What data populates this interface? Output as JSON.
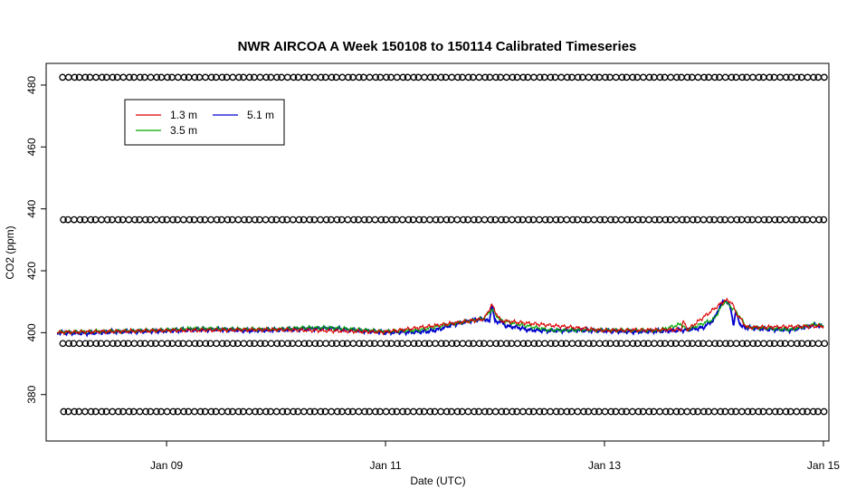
{
  "chart_data": {
    "type": "line",
    "title": "NWR AIRCOA A  Week 150108 to 150114  Calibrated Timeseries",
    "xlabel": "Date (UTC)",
    "ylabel": "CO2 (ppm)",
    "x_unit": "days (January 2015, UTC)",
    "xlim": [
      7.9,
      15.05
    ],
    "ylim": [
      365,
      487
    ],
    "x_ticks": [
      {
        "value": 9,
        "label": "Jan 09"
      },
      {
        "value": 11,
        "label": "Jan 11"
      },
      {
        "value": 13,
        "label": "Jan 13"
      },
      {
        "value": 15,
        "label": "Jan 15"
      }
    ],
    "y_ticks": [
      {
        "value": 380,
        "label": "380"
      },
      {
        "value": 400,
        "label": "400"
      },
      {
        "value": 420,
        "label": "420"
      },
      {
        "value": 440,
        "label": "440"
      },
      {
        "value": 460,
        "label": "460"
      },
      {
        "value": 480,
        "label": "480"
      }
    ],
    "grid": false,
    "legend": {
      "placement": "top-left",
      "entries": [
        {
          "label": "1.3 m",
          "color": "#dd0000"
        },
        {
          "label": "3.5 m",
          "color": "#00aa00"
        },
        {
          "label": "5.1 m",
          "color": "#0000cc"
        }
      ]
    },
    "series": [
      {
        "name": "5.1 m",
        "color": "#0000cc",
        "points": [
          [
            8.0,
            400.0
          ],
          [
            8.25,
            399.8
          ],
          [
            8.5,
            400.3
          ],
          [
            8.75,
            400.4
          ],
          [
            9.0,
            400.6
          ],
          [
            9.25,
            401.0
          ],
          [
            9.5,
            401.0
          ],
          [
            9.75,
            400.7
          ],
          [
            10.0,
            400.9
          ],
          [
            10.25,
            401.2
          ],
          [
            10.5,
            401.4
          ],
          [
            10.75,
            400.7
          ],
          [
            11.0,
            400.1
          ],
          [
            11.25,
            400.2
          ],
          [
            11.4,
            400.5
          ],
          [
            11.5,
            401.2
          ],
          [
            11.6,
            402.5
          ],
          [
            11.7,
            403.2
          ],
          [
            11.8,
            404.0
          ],
          [
            11.9,
            404.5
          ],
          [
            11.95,
            403.4
          ],
          [
            11.97,
            409.6
          ],
          [
            12.0,
            403.4
          ],
          [
            12.05,
            403.8
          ],
          [
            12.1,
            402.1
          ],
          [
            12.2,
            401.8
          ],
          [
            12.3,
            400.9
          ],
          [
            12.5,
            400.6
          ],
          [
            12.75,
            400.8
          ],
          [
            13.0,
            400.6
          ],
          [
            13.25,
            400.3
          ],
          [
            13.5,
            400.5
          ],
          [
            13.75,
            400.9
          ],
          [
            13.9,
            401.6
          ],
          [
            14.0,
            404.2
          ],
          [
            14.05,
            408.2
          ],
          [
            14.1,
            410.7
          ],
          [
            14.15,
            408.2
          ],
          [
            14.18,
            402.6
          ],
          [
            14.2,
            406.6
          ],
          [
            14.25,
            402.0
          ],
          [
            14.3,
            401.6
          ],
          [
            14.5,
            401.1
          ],
          [
            14.7,
            400.8
          ],
          [
            14.85,
            402.0
          ],
          [
            14.92,
            402.5
          ],
          [
            15.0,
            402.0
          ]
        ]
      },
      {
        "name": "3.5 m",
        "color": "#00aa00",
        "points": [
          [
            8.0,
            400.2
          ],
          [
            8.5,
            400.5
          ],
          [
            9.0,
            400.9
          ],
          [
            9.25,
            401.4
          ],
          [
            9.5,
            401.2
          ],
          [
            10.0,
            401.1
          ],
          [
            10.25,
            401.6
          ],
          [
            10.5,
            401.6
          ],
          [
            11.0,
            400.4
          ],
          [
            11.3,
            400.8
          ],
          [
            11.6,
            402.8
          ],
          [
            11.9,
            404.6
          ],
          [
            11.97,
            407.5
          ],
          [
            12.05,
            404.0
          ],
          [
            12.2,
            402.8
          ],
          [
            12.5,
            400.8
          ],
          [
            13.0,
            400.9
          ],
          [
            13.5,
            400.7
          ],
          [
            13.7,
            402.8
          ],
          [
            13.75,
            400.9
          ],
          [
            14.0,
            404.4
          ],
          [
            14.1,
            410.2
          ],
          [
            14.2,
            406.9
          ],
          [
            14.3,
            401.8
          ],
          [
            14.7,
            401.0
          ],
          [
            14.92,
            402.7
          ],
          [
            15.0,
            402.2
          ]
        ]
      },
      {
        "name": "1.3 m",
        "color": "#dd0000",
        "points": [
          [
            8.0,
            400.1
          ],
          [
            9.0,
            400.7
          ],
          [
            10.0,
            401.0
          ],
          [
            11.0,
            400.2
          ],
          [
            11.9,
            404.4
          ],
          [
            11.97,
            409.0
          ],
          [
            12.05,
            403.9
          ],
          [
            13.0,
            400.7
          ],
          [
            13.7,
            401.0
          ],
          [
            13.72,
            403.6
          ],
          [
            13.76,
            401.0
          ],
          [
            14.1,
            410.4
          ],
          [
            14.16,
            410.0
          ],
          [
            14.2,
            406.5
          ],
          [
            14.3,
            401.7
          ],
          [
            15.0,
            402.1
          ]
        ]
      }
    ],
    "calibration_markers": {
      "symbol": "open-circle",
      "x_start": 8.05,
      "x_end": 15.0,
      "levels": [
        482.5,
        436.5,
        396.5,
        374.5
      ]
    }
  }
}
